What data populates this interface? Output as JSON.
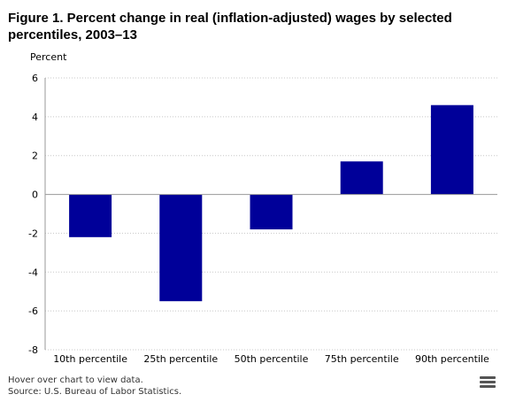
{
  "chart_data": {
    "type": "bar",
    "title": "Figure 1. Percent change in real (inflation-adjusted) wages by selected percentiles, 2003–13",
    "ylabel": "Percent",
    "xlabel": "",
    "categories": [
      "10th percentile",
      "25th percentile",
      "50th percentile",
      "75th percentile",
      "90th percentile"
    ],
    "values": [
      -2.2,
      -5.5,
      -1.8,
      1.7,
      4.6
    ],
    "ylim": [
      -8,
      6
    ],
    "yticks": [
      6,
      4,
      2,
      0,
      -2,
      -4,
      -6,
      -8
    ],
    "bar_color": "#000099",
    "grid": true
  },
  "footer": {
    "hover_note": "Hover over chart to view data.",
    "source": "Source: U.S. Bureau of Labor Statistics."
  },
  "icons": {
    "menu": "hamburger-menu-icon"
  },
  "colors": {
    "grid": "#c8c8c8",
    "axis": "#999999"
  }
}
